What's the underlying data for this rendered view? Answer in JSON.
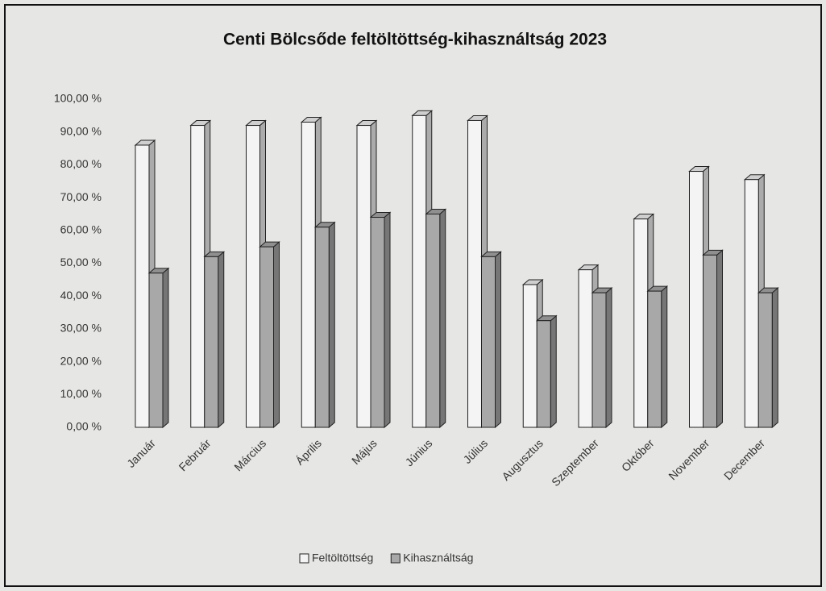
{
  "chart_data": {
    "type": "bar3d",
    "title": "Centi Bölcsőde  feltöltöttség-kihasználtság 2023",
    "categories": [
      "Január",
      "Február",
      "Március",
      "Április",
      "Május",
      "Június",
      "Július",
      "Augusztus",
      "Szeptember",
      "Október",
      "November",
      "December"
    ],
    "series": [
      {
        "name": "Feltöltöttség",
        "color": "#f4f4f4",
        "values": [
          86,
          92,
          92,
          93,
          92,
          95,
          93.5,
          43.5,
          48,
          63.5,
          78,
          75.5
        ]
      },
      {
        "name": "Kihasználtság",
        "color": "#a8a8a8",
        "values": [
          47,
          52,
          55,
          61,
          64,
          65,
          52,
          32.5,
          41,
          41.5,
          52.5,
          41
        ]
      }
    ],
    "ylim": [
      0,
      100
    ],
    "yticks": [
      {
        "value": 0,
        "label": "0,00 %"
      },
      {
        "value": 10,
        "label": "10,00 %"
      },
      {
        "value": 20,
        "label": "20,00 %"
      },
      {
        "value": 30,
        "label": "30,00 %"
      },
      {
        "value": 40,
        "label": "40,00 %"
      },
      {
        "value": 50,
        "label": "50,00 %"
      },
      {
        "value": 60,
        "label": "60,00 %"
      },
      {
        "value": 70,
        "label": "70,00 %"
      },
      {
        "value": 80,
        "label": "80,00 %"
      },
      {
        "value": 90,
        "label": "90,00 %"
      },
      {
        "value": 100,
        "label": "100,00 %"
      }
    ],
    "grid": false,
    "legend": "bottom"
  }
}
